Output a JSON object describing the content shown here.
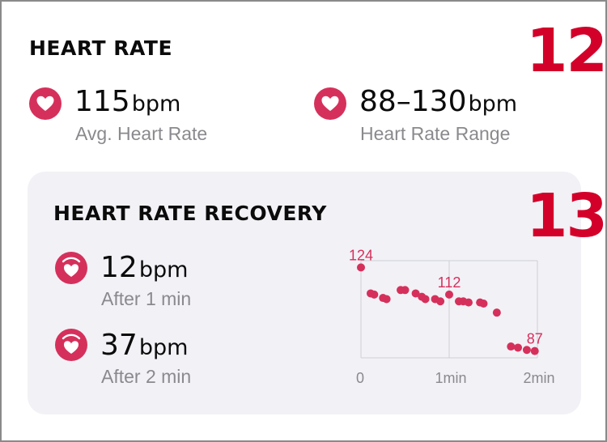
{
  "heart_rate": {
    "title": "HEART RATE",
    "badge": "12",
    "avg": {
      "value": "115",
      "unit": "bpm",
      "label": "Avg. Heart Rate"
    },
    "range": {
      "value": "88–130",
      "unit": "bpm",
      "label": "Heart Rate Range"
    }
  },
  "recovery": {
    "title": "HEART RATE RECOVERY",
    "badge": "13",
    "one_min": {
      "value": "12",
      "unit": "bpm",
      "label": "After 1 min"
    },
    "two_min": {
      "value": "37",
      "unit": "bpm",
      "label": "After 2 min"
    }
  },
  "colors": {
    "accent": "#d5305b",
    "badge": "#d3002a",
    "card": "#f2f1f6"
  },
  "icons": {
    "heart": "heart-icon",
    "recovery": "heart-recovery-icon"
  },
  "chart_data": {
    "type": "scatter",
    "xlim": [
      0,
      2
    ],
    "ylim": [
      84,
      127
    ],
    "x_ticks": [
      "0",
      "1min",
      "2min"
    ],
    "x_tick_values": [
      0,
      1,
      2
    ],
    "annotations": [
      {
        "x": 0.0,
        "y": 124,
        "label": "124"
      },
      {
        "x": 1.0,
        "y": 112,
        "label": "112"
      },
      {
        "x": 1.97,
        "y": 87,
        "label": "87"
      }
    ],
    "points": [
      {
        "x": 0.0,
        "y": 124
      },
      {
        "x": 0.11,
        "y": 112.5
      },
      {
        "x": 0.15,
        "y": 112
      },
      {
        "x": 0.25,
        "y": 110.5
      },
      {
        "x": 0.29,
        "y": 110
      },
      {
        "x": 0.45,
        "y": 114
      },
      {
        "x": 0.5,
        "y": 114
      },
      {
        "x": 0.62,
        "y": 112.5
      },
      {
        "x": 0.69,
        "y": 111
      },
      {
        "x": 0.73,
        "y": 110
      },
      {
        "x": 0.84,
        "y": 110
      },
      {
        "x": 0.9,
        "y": 109
      },
      {
        "x": 1.0,
        "y": 112
      },
      {
        "x": 1.11,
        "y": 109
      },
      {
        "x": 1.16,
        "y": 109
      },
      {
        "x": 1.22,
        "y": 108.5
      },
      {
        "x": 1.35,
        "y": 108.5
      },
      {
        "x": 1.39,
        "y": 108
      },
      {
        "x": 1.54,
        "y": 104
      },
      {
        "x": 1.7,
        "y": 89
      },
      {
        "x": 1.78,
        "y": 88.5
      },
      {
        "x": 1.88,
        "y": 87.5
      },
      {
        "x": 1.97,
        "y": 87
      }
    ]
  }
}
